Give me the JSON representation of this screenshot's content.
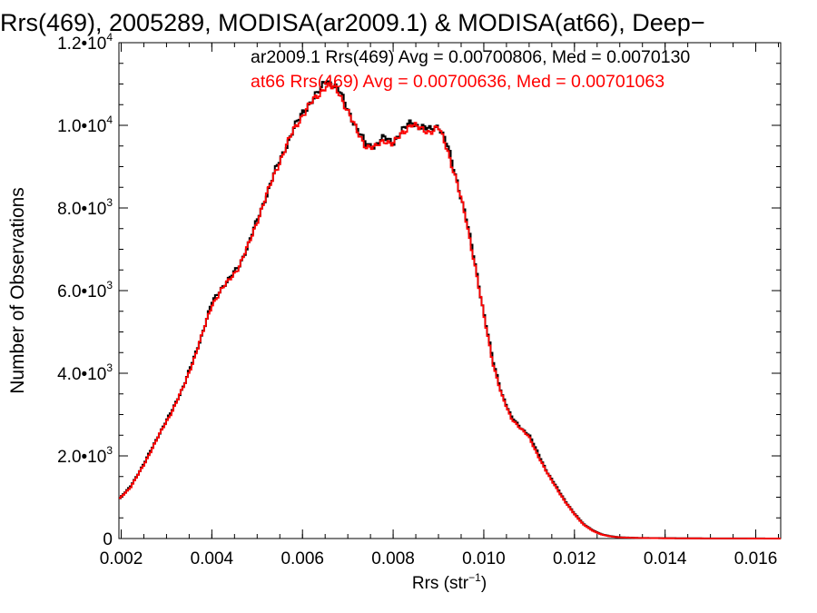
{
  "chart_data": {
    "type": "line",
    "title": "Rrs(469), 2005289, MODISA(ar2009.1) & MODISA(at66), Deep−",
    "xlabel": "Rrs (str",
    "xlabel_sup": "−1",
    "xlabel_close": ")",
    "ylabel": "Number of Observations",
    "xlim": [
      0.00195,
      0.01655
    ],
    "ylim": [
      0,
      12000
    ],
    "x_ticks": [
      {
        "value": 0.002,
        "label": "0.002"
      },
      {
        "value": 0.004,
        "label": "0.004"
      },
      {
        "value": 0.006,
        "label": "0.006"
      },
      {
        "value": 0.008,
        "label": "0.008"
      },
      {
        "value": 0.01,
        "label": "0.010"
      },
      {
        "value": 0.012,
        "label": "0.012"
      },
      {
        "value": 0.014,
        "label": "0.014"
      },
      {
        "value": 0.016,
        "label": "0.016"
      }
    ],
    "y_ticks": [
      {
        "value": 0,
        "mant": "0",
        "exp": ""
      },
      {
        "value": 2000,
        "mant": "2.0•10",
        "exp": "3"
      },
      {
        "value": 4000,
        "mant": "4.0•10",
        "exp": "3"
      },
      {
        "value": 6000,
        "mant": "6.0•10",
        "exp": "3"
      },
      {
        "value": 8000,
        "mant": "8.0•10",
        "exp": "3"
      },
      {
        "value": 10000,
        "mant": "1.0•10",
        "exp": "4"
      },
      {
        "value": 12000,
        "mant": "1.2•10",
        "exp": "4"
      }
    ],
    "annotations": [
      {
        "text": "ar2009.1 Rrs(469) Avg = 0.00700806, Med = 0.0070130",
        "color": "#000000"
      },
      {
        "text": "at66 Rrs(469) Avg = 0.00700636, Med = 0.00701063",
        "color": "#ff0000"
      }
    ],
    "series": [
      {
        "color": "#000000",
        "points": [
          [
            0.00195,
            950
          ],
          [
            0.0022,
            1250
          ],
          [
            0.0025,
            1800
          ],
          [
            0.0028,
            2450
          ],
          [
            0.0031,
            3050
          ],
          [
            0.0034,
            3750
          ],
          [
            0.0036,
            4350
          ],
          [
            0.0038,
            5000
          ],
          [
            0.004,
            5700
          ],
          [
            0.0042,
            6050
          ],
          [
            0.0044,
            6300
          ],
          [
            0.0046,
            6600
          ],
          [
            0.0048,
            7100
          ],
          [
            0.005,
            7700
          ],
          [
            0.0052,
            8300
          ],
          [
            0.0054,
            8900
          ],
          [
            0.0056,
            9400
          ],
          [
            0.0058,
            9900
          ],
          [
            0.006,
            10300
          ],
          [
            0.0062,
            10600
          ],
          [
            0.0064,
            10850
          ],
          [
            0.0065,
            11100
          ],
          [
            0.0066,
            11050
          ],
          [
            0.0068,
            10850
          ],
          [
            0.007,
            10400
          ],
          [
            0.0072,
            9900
          ],
          [
            0.0074,
            9550
          ],
          [
            0.0076,
            9500
          ],
          [
            0.0078,
            9700
          ],
          [
            0.008,
            9600
          ],
          [
            0.0082,
            9850
          ],
          [
            0.0084,
            10100
          ],
          [
            0.0086,
            9950
          ],
          [
            0.0088,
            9900
          ],
          [
            0.009,
            10000
          ],
          [
            0.0092,
            9500
          ],
          [
            0.0094,
            8700
          ],
          [
            0.0096,
            7800
          ],
          [
            0.0098,
            6700
          ],
          [
            0.01,
            5450
          ],
          [
            0.0102,
            4300
          ],
          [
            0.0104,
            3500
          ],
          [
            0.0106,
            2950
          ],
          [
            0.0108,
            2700
          ],
          [
            0.011,
            2500
          ],
          [
            0.0112,
            2050
          ],
          [
            0.0114,
            1600
          ],
          [
            0.0116,
            1250
          ],
          [
            0.0118,
            900
          ],
          [
            0.012,
            600
          ],
          [
            0.0122,
            350
          ],
          [
            0.0124,
            200
          ],
          [
            0.0126,
            100
          ],
          [
            0.0128,
            55
          ],
          [
            0.013,
            30
          ],
          [
            0.0134,
            15
          ],
          [
            0.014,
            8
          ],
          [
            0.015,
            3
          ],
          [
            0.0165,
            1
          ]
        ]
      },
      {
        "color": "#ff0000",
        "points": [
          [
            0.00195,
            950
          ],
          [
            0.0022,
            1230
          ],
          [
            0.0025,
            1780
          ],
          [
            0.0028,
            2430
          ],
          [
            0.0031,
            3030
          ],
          [
            0.0034,
            3730
          ],
          [
            0.0036,
            4330
          ],
          [
            0.0038,
            4980
          ],
          [
            0.004,
            5650
          ],
          [
            0.0042,
            6000
          ],
          [
            0.0044,
            6280
          ],
          [
            0.0046,
            6580
          ],
          [
            0.0048,
            7080
          ],
          [
            0.005,
            7680
          ],
          [
            0.0052,
            8280
          ],
          [
            0.0054,
            8880
          ],
          [
            0.0056,
            9380
          ],
          [
            0.0058,
            9880
          ],
          [
            0.006,
            10250
          ],
          [
            0.0062,
            10550
          ],
          [
            0.0064,
            10800
          ],
          [
            0.0065,
            10950
          ],
          [
            0.0066,
            10950
          ],
          [
            0.0068,
            10800
          ],
          [
            0.007,
            10350
          ],
          [
            0.0072,
            9850
          ],
          [
            0.0074,
            9500
          ],
          [
            0.0076,
            9450
          ],
          [
            0.0078,
            9650
          ],
          [
            0.008,
            9550
          ],
          [
            0.0082,
            9800
          ],
          [
            0.0084,
            10050
          ],
          [
            0.0086,
            9900
          ],
          [
            0.0088,
            9850
          ],
          [
            0.009,
            9950
          ],
          [
            0.0092,
            9400
          ],
          [
            0.0094,
            8650
          ],
          [
            0.0096,
            7750
          ],
          [
            0.0098,
            6650
          ],
          [
            0.01,
            5400
          ],
          [
            0.0102,
            4250
          ],
          [
            0.0104,
            3450
          ],
          [
            0.0106,
            2920
          ],
          [
            0.0108,
            2680
          ],
          [
            0.011,
            2450
          ],
          [
            0.0112,
            2000
          ],
          [
            0.0114,
            1580
          ],
          [
            0.0116,
            1230
          ],
          [
            0.0118,
            880
          ],
          [
            0.012,
            590
          ],
          [
            0.0122,
            340
          ],
          [
            0.0124,
            190
          ],
          [
            0.0126,
            95
          ],
          [
            0.0128,
            50
          ],
          [
            0.013,
            28
          ],
          [
            0.0134,
            14
          ],
          [
            0.014,
            7
          ],
          [
            0.015,
            3
          ],
          [
            0.0165,
            1
          ]
        ]
      }
    ]
  }
}
